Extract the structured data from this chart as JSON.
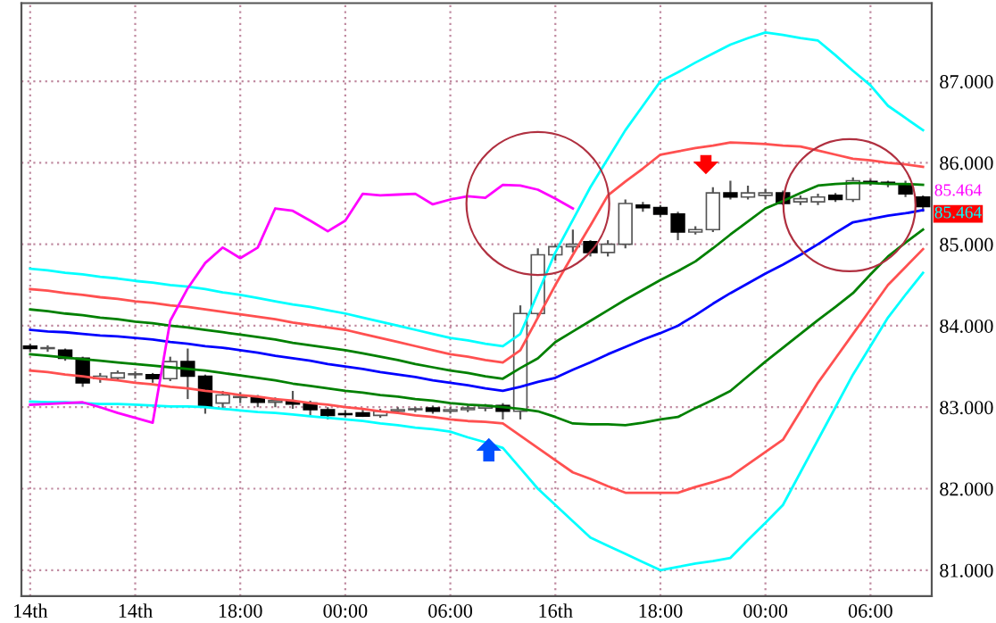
{
  "chart_data": {
    "type": "candlestick",
    "categories": [
      "14th",
      null,
      null,
      null,
      null,
      null,
      "14th",
      null,
      null,
      null,
      null,
      null,
      "18:00",
      null,
      null,
      null,
      null,
      null,
      "00:00",
      null,
      null,
      null,
      null,
      null,
      "06:00",
      null,
      null,
      null,
      null,
      null,
      "16th",
      null,
      null,
      null,
      null,
      null,
      "18:00",
      null,
      null,
      null,
      null,
      null,
      "00:00",
      null,
      null,
      null,
      null,
      null,
      "06:00",
      null,
      null,
      null
    ],
    "ohlc": [
      [
        83.75,
        83.78,
        83.68,
        83.72
      ],
      [
        83.72,
        83.76,
        83.68,
        83.73
      ],
      [
        83.7,
        83.72,
        83.57,
        83.6
      ],
      [
        83.6,
        83.62,
        83.25,
        83.3
      ],
      [
        83.35,
        83.42,
        83.3,
        83.38
      ],
      [
        83.36,
        83.45,
        83.33,
        83.42
      ],
      [
        83.4,
        83.44,
        83.35,
        83.41
      ],
      [
        83.4,
        83.42,
        83.3,
        83.35
      ],
      [
        83.35,
        83.62,
        83.32,
        83.56
      ],
      [
        83.56,
        83.72,
        83.1,
        83.38
      ],
      [
        83.38,
        83.4,
        82.92,
        83.0
      ],
      [
        83.05,
        83.2,
        82.98,
        83.15
      ],
      [
        83.12,
        83.18,
        83.05,
        83.13
      ],
      [
        83.12,
        83.15,
        83.0,
        83.06
      ],
      [
        83.06,
        83.12,
        83.0,
        83.08
      ],
      [
        83.07,
        83.2,
        82.98,
        83.04
      ],
      [
        83.05,
        83.08,
        82.9,
        82.97
      ],
      [
        82.97,
        83.0,
        82.85,
        82.9
      ],
      [
        82.92,
        82.96,
        82.88,
        82.91
      ],
      [
        82.93,
        82.97,
        82.88,
        82.89
      ],
      [
        82.9,
        82.98,
        82.87,
        82.95
      ],
      [
        82.95,
        83.0,
        82.92,
        82.97
      ],
      [
        82.97,
        83.0,
        82.94,
        82.98
      ],
      [
        82.99,
        83.02,
        82.92,
        82.95
      ],
      [
        82.95,
        83.0,
        82.92,
        82.97
      ],
      [
        82.97,
        83.02,
        82.94,
        82.99
      ],
      [
        82.99,
        83.04,
        82.95,
        83.02
      ],
      [
        83.02,
        83.05,
        82.85,
        82.95
      ],
      [
        82.95,
        84.25,
        82.85,
        84.15
      ],
      [
        84.15,
        84.95,
        84.1,
        84.87
      ],
      [
        84.87,
        85.0,
        84.8,
        84.97
      ],
      [
        84.97,
        85.18,
        84.9,
        85.0
      ],
      [
        85.03,
        85.05,
        84.85,
        84.9
      ],
      [
        84.9,
        85.05,
        84.85,
        85.0
      ],
      [
        85.0,
        85.55,
        84.95,
        85.5
      ],
      [
        85.48,
        85.52,
        85.4,
        85.45
      ],
      [
        85.45,
        85.48,
        85.33,
        85.37
      ],
      [
        85.37,
        85.4,
        85.05,
        85.15
      ],
      [
        85.15,
        85.22,
        85.12,
        85.18
      ],
      [
        85.18,
        85.7,
        85.15,
        85.63
      ],
      [
        85.63,
        85.78,
        85.55,
        85.58
      ],
      [
        85.58,
        85.72,
        85.55,
        85.63
      ],
      [
        85.6,
        85.68,
        85.55,
        85.63
      ],
      [
        85.63,
        85.66,
        85.48,
        85.5
      ],
      [
        85.52,
        85.6,
        85.48,
        85.56
      ],
      [
        85.52,
        85.62,
        85.48,
        85.58
      ],
      [
        85.6,
        85.63,
        85.52,
        85.55
      ],
      [
        85.55,
        85.82,
        85.52,
        85.78
      ],
      [
        85.77,
        85.8,
        85.72,
        85.76
      ],
      [
        85.76,
        85.78,
        85.7,
        85.74
      ],
      [
        85.74,
        85.78,
        85.58,
        85.62
      ],
      [
        85.58,
        85.6,
        85.4,
        85.464
      ]
    ],
    "series": [
      {
        "type": "line",
        "color": "#00ffff",
        "values": [
          84.7,
          84.68,
          84.65,
          84.63,
          84.6,
          84.58,
          84.55,
          84.53,
          84.5,
          84.48,
          84.45,
          84.41,
          84.38,
          84.34,
          84.3,
          84.26,
          84.23,
          84.19,
          84.15,
          84.1,
          84.05,
          84.0,
          83.95,
          83.9,
          83.85,
          83.82,
          83.78,
          83.75,
          83.9,
          84.4,
          84.9,
          85.3,
          85.7,
          86.05,
          86.4,
          86.7,
          87.0,
          87.11,
          87.23,
          87.34,
          87.45,
          87.53,
          87.6,
          87.57,
          87.53,
          87.5,
          87.32,
          87.13,
          86.95,
          86.7,
          86.55,
          86.4
        ]
      },
      {
        "type": "line",
        "color": "#ff5050",
        "values": [
          84.45,
          84.43,
          84.4,
          84.38,
          84.35,
          84.33,
          84.3,
          84.28,
          84.25,
          84.23,
          84.2,
          84.17,
          84.14,
          84.11,
          84.08,
          84.04,
          84.01,
          83.98,
          83.95,
          83.9,
          83.85,
          83.8,
          83.75,
          83.7,
          83.65,
          83.62,
          83.58,
          83.55,
          83.7,
          84.1,
          84.5,
          84.87,
          85.23,
          85.6,
          85.77,
          85.93,
          86.1,
          86.14,
          86.18,
          86.21,
          86.25,
          86.24,
          86.23,
          86.21,
          86.2,
          86.15,
          86.1,
          86.05,
          86.03,
          86.0,
          85.98,
          85.95
        ]
      },
      {
        "type": "line",
        "color": "#008000",
        "values": [
          84.2,
          84.18,
          84.15,
          84.13,
          84.1,
          84.08,
          84.05,
          84.03,
          84.0,
          83.98,
          83.95,
          83.92,
          83.89,
          83.86,
          83.83,
          83.79,
          83.76,
          83.73,
          83.7,
          83.66,
          83.62,
          83.58,
          83.53,
          83.49,
          83.45,
          83.42,
          83.38,
          83.35,
          83.48,
          83.6,
          83.8,
          83.93,
          84.06,
          84.19,
          84.32,
          84.44,
          84.56,
          84.67,
          84.79,
          84.95,
          85.12,
          85.28,
          85.44,
          85.53,
          85.63,
          85.72,
          85.74,
          85.75,
          85.75,
          85.74,
          85.74,
          85.73
        ]
      },
      {
        "type": "line",
        "color": "#0000ff",
        "values": [
          83.95,
          83.93,
          83.92,
          83.9,
          83.88,
          83.87,
          83.85,
          83.83,
          83.8,
          83.78,
          83.75,
          83.73,
          83.7,
          83.67,
          83.63,
          83.6,
          83.57,
          83.53,
          83.5,
          83.47,
          83.43,
          83.4,
          83.37,
          83.33,
          83.3,
          83.27,
          83.23,
          83.2,
          83.25,
          83.31,
          83.36,
          83.46,
          83.55,
          83.65,
          83.74,
          83.83,
          83.91,
          84.0,
          84.13,
          84.27,
          84.4,
          84.52,
          84.64,
          84.75,
          84.87,
          85.0,
          85.14,
          85.27,
          85.31,
          85.35,
          85.38,
          85.42
        ]
      },
      {
        "type": "line",
        "color": "#008000",
        "values": [
          83.65,
          83.63,
          83.61,
          83.59,
          83.57,
          83.55,
          83.53,
          83.51,
          83.49,
          83.47,
          83.45,
          83.42,
          83.39,
          83.36,
          83.33,
          83.29,
          83.26,
          83.23,
          83.2,
          83.18,
          83.15,
          83.13,
          83.1,
          83.08,
          83.05,
          83.03,
          83.02,
          83.0,
          82.98,
          82.95,
          82.88,
          82.8,
          82.79,
          82.79,
          82.78,
          82.81,
          82.85,
          82.88,
          82.99,
          83.09,
          83.2,
          83.38,
          83.56,
          83.73,
          83.9,
          84.07,
          84.23,
          84.4,
          84.63,
          84.85,
          85.02,
          85.18
        ]
      },
      {
        "type": "line",
        "color": "#ff5050",
        "values": [
          83.45,
          83.43,
          83.4,
          83.38,
          83.35,
          83.33,
          83.3,
          83.28,
          83.25,
          83.23,
          83.2,
          83.18,
          83.15,
          83.13,
          83.1,
          83.08,
          83.05,
          83.03,
          83.0,
          82.98,
          82.95,
          82.93,
          82.9,
          82.88,
          82.85,
          82.83,
          82.82,
          82.8,
          82.65,
          82.5,
          82.35,
          82.2,
          82.12,
          82.03,
          81.95,
          81.95,
          81.95,
          81.95,
          82.02,
          82.08,
          82.15,
          82.3,
          82.45,
          82.6,
          82.95,
          83.3,
          83.6,
          83.9,
          84.2,
          84.5,
          84.72,
          84.94
        ]
      },
      {
        "type": "line",
        "color": "#00ffff",
        "values": [
          83.07,
          83.06,
          83.06,
          83.05,
          83.04,
          83.04,
          83.03,
          83.02,
          83.01,
          83.01,
          83.0,
          82.98,
          82.96,
          82.94,
          82.93,
          82.91,
          82.89,
          82.87,
          82.85,
          82.83,
          82.8,
          82.78,
          82.75,
          82.73,
          82.7,
          82.63,
          82.57,
          82.5,
          82.25,
          82.0,
          81.8,
          81.6,
          81.4,
          81.3,
          81.2,
          81.1,
          81.0,
          81.04,
          81.08,
          81.11,
          81.15,
          81.37,
          81.58,
          81.8,
          82.2,
          82.6,
          83.0,
          83.4,
          83.75,
          84.1,
          84.38,
          84.65
        ]
      },
      {
        "type": "line",
        "color": "#ff00ff",
        "values": [
          83.03,
          83.04,
          83.05,
          83.06,
          83.0,
          82.93,
          82.87,
          82.81,
          84.06,
          84.46,
          84.77,
          84.96,
          84.83,
          84.96,
          85.44,
          85.41,
          85.29,
          85.16,
          85.29,
          85.62,
          85.6,
          85.61,
          85.62,
          85.49,
          85.55,
          85.59,
          85.57,
          85.73,
          85.72,
          85.67,
          85.56,
          85.44,
          null,
          null,
          null,
          null,
          null,
          null,
          null,
          null,
          null,
          null,
          null,
          null,
          null,
          null,
          null,
          null,
          null,
          null,
          null,
          null
        ]
      }
    ],
    "annotations": [
      "85.464",
      "85.464"
    ],
    "ylim": [
      80.68,
      87.96
    ],
    "yticks": [
      {
        "value": 81,
        "label": "81.000"
      },
      {
        "value": 82,
        "label": "82.000"
      },
      {
        "value": 83,
        "label": "83.000"
      },
      {
        "value": 84,
        "label": "84.000"
      },
      {
        "value": 85,
        "label": "85.000"
      },
      {
        "value": 86,
        "label": "86.000"
      },
      {
        "value": 87,
        "label": "87.000"
      }
    ],
    "grid": true,
    "legend": false,
    "marker": "none",
    "line_style": "solid"
  }
}
